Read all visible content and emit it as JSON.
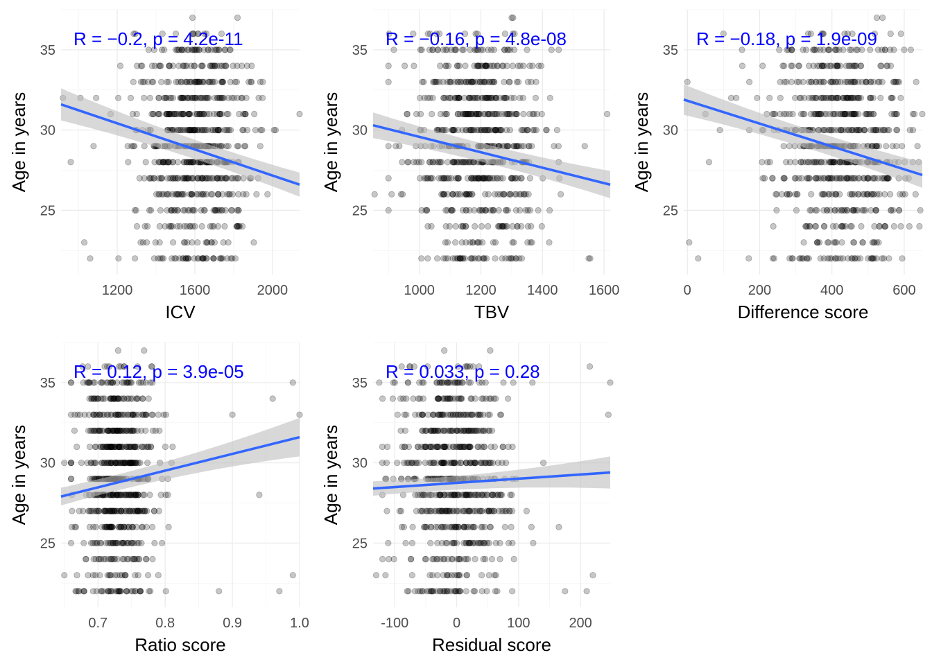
{
  "figure": {
    "background": "#ffffff"
  },
  "style": {
    "point_color": "#000000",
    "point_alpha": 0.22,
    "line_color": "#3366ff",
    "ribbon_color": "#bebebe",
    "annotation_color": "#0000ff",
    "axis_text_color": "#4d4d4d",
    "grid_color": "#ebebeb"
  },
  "chart_data": [
    {
      "type": "scatter",
      "xlabel": "ICV",
      "ylabel": "Age in years",
      "xlim": [
        910,
        2140
      ],
      "ylim": [
        21,
        37.5
      ],
      "xticks": [
        "1200",
        "1600",
        "2000"
      ],
      "xtick_values": [
        1200,
        1600,
        2000
      ],
      "yticks": [
        "25",
        "30",
        "35"
      ],
      "ytick_values": [
        25,
        30,
        35
      ],
      "stat": {
        "R": "R = −0.2",
        "p": "p = 4.2e-11"
      },
      "fit": {
        "x": [
          910,
          2140
        ],
        "y": [
          31.6,
          26.6
        ],
        "ci_start": 1.0,
        "ci_mid": 0.35,
        "ci_end": 0.75
      },
      "x_dist": {
        "center": 1600,
        "spread": 150,
        "min": 1050,
        "max": 2140
      },
      "y_values": [
        22,
        23,
        24,
        25,
        26,
        27,
        28,
        29,
        30,
        31,
        32,
        33,
        34,
        35,
        36,
        37
      ],
      "y_counts": [
        40,
        20,
        30,
        38,
        45,
        68,
        72,
        70,
        68,
        66,
        60,
        52,
        42,
        36,
        12,
        1
      ],
      "outliers": [
        [
          920,
          32
        ],
        [
          960,
          28
        ],
        [
          1010,
          32
        ],
        [
          1030,
          23
        ],
        [
          1060,
          22
        ],
        [
          2140,
          31
        ],
        [
          1820,
          37
        ]
      ]
    },
    {
      "type": "scatter",
      "xlabel": "TBV",
      "ylabel": "Age in years",
      "xlim": [
        850,
        1620
      ],
      "ylim": [
        21,
        37.5
      ],
      "xticks": [
        "1000",
        "1200",
        "1400",
        "1600"
      ],
      "xtick_values": [
        1000,
        1200,
        1400,
        1600
      ],
      "yticks": [
        "25",
        "30",
        "35"
      ],
      "ytick_values": [
        25,
        30,
        35
      ],
      "stat": {
        "R": "R = −0.16",
        "p": "p = 4.8e-08"
      },
      "fit": {
        "x": [
          850,
          1620
        ],
        "y": [
          30.3,
          26.6
        ],
        "ci_start": 0.8,
        "ci_mid": 0.33,
        "ci_end": 0.85
      },
      "x_dist": {
        "center": 1190,
        "spread": 110,
        "min": 900,
        "max": 1560
      },
      "y_values": [
        22,
        23,
        24,
        25,
        26,
        27,
        28,
        29,
        30,
        31,
        32,
        33,
        34,
        35,
        36,
        37
      ],
      "y_counts": [
        40,
        20,
        30,
        38,
        45,
        68,
        72,
        70,
        68,
        66,
        60,
        52,
        42,
        36,
        12,
        1
      ],
      "outliers": [
        [
          855,
          26
        ],
        [
          1610,
          31
        ],
        [
          1555,
          22
        ],
        [
          1300,
          37
        ]
      ]
    },
    {
      "type": "scatter",
      "xlabel": "Difference score",
      "ylabel": "Age in years",
      "xlim": [
        -10,
        650
      ],
      "ylim": [
        21,
        37.5
      ],
      "xticks": [
        "0",
        "200",
        "400",
        "600"
      ],
      "xtick_values": [
        0,
        200,
        400,
        600
      ],
      "yticks": [
        "25",
        "30",
        "35"
      ],
      "ytick_values": [
        25,
        30,
        35
      ],
      "stat": {
        "R": "R = −0.18",
        "p": "p = 1.9e-09"
      },
      "fit": {
        "x": [
          -10,
          650
        ],
        "y": [
          31.9,
          27.2
        ],
        "ci_start": 0.95,
        "ci_mid": 0.33,
        "ci_end": 0.8
      },
      "x_dist": {
        "center": 420,
        "spread": 95,
        "min": 100,
        "max": 650
      },
      "y_values": [
        22,
        23,
        24,
        25,
        26,
        27,
        28,
        29,
        30,
        31,
        32,
        33,
        34,
        35,
        36,
        37
      ],
      "y_counts": [
        40,
        20,
        30,
        38,
        45,
        68,
        72,
        70,
        68,
        66,
        60,
        52,
        42,
        36,
        12,
        1
      ],
      "outliers": [
        [
          0,
          33
        ],
        [
          5,
          23
        ],
        [
          30,
          22
        ],
        [
          50,
          31
        ],
        [
          60,
          28
        ],
        [
          90,
          30
        ],
        [
          170,
          22
        ],
        [
          640,
          28
        ],
        [
          600,
          35
        ],
        [
          540,
          37
        ]
      ]
    },
    {
      "type": "scatter",
      "xlabel": "Ratio score",
      "ylabel": "Age in years",
      "xlim": [
        0.645,
        1.0
      ],
      "ylim": [
        21,
        37.5
      ],
      "xticks": [
        "0.7",
        "0.8",
        "0.9",
        "1.0"
      ],
      "xtick_values": [
        0.7,
        0.8,
        0.9,
        1.0
      ],
      "yticks": [
        "25",
        "30",
        "35"
      ],
      "ytick_values": [
        25,
        30,
        35
      ],
      "stat": {
        "R": "R = 0.12",
        "p": "p = 3.9e-05"
      },
      "fit": {
        "x": [
          0.645,
          1.0
        ],
        "y": [
          27.9,
          31.6
        ],
        "ci_start": 0.55,
        "ci_mid": 0.3,
        "ci_end": 1.2
      },
      "x_dist": {
        "center": 0.728,
        "spread": 0.028,
        "min": 0.66,
        "max": 0.86
      },
      "y_values": [
        22,
        23,
        24,
        25,
        26,
        27,
        28,
        29,
        30,
        31,
        32,
        33,
        34,
        35,
        36,
        37
      ],
      "y_counts": [
        40,
        20,
        30,
        38,
        45,
        68,
        72,
        70,
        68,
        66,
        60,
        52,
        42,
        36,
        12,
        1
      ],
      "outliers": [
        [
          0.65,
          23
        ],
        [
          0.65,
          30
        ],
        [
          0.88,
          22
        ],
        [
          0.97,
          22
        ],
        [
          0.99,
          23
        ],
        [
          0.99,
          35
        ],
        [
          1.0,
          33
        ],
        [
          0.96,
          34
        ],
        [
          0.94,
          28
        ],
        [
          0.9,
          33
        ],
        [
          0.73,
          37
        ]
      ]
    },
    {
      "type": "scatter",
      "xlabel": "Residual score",
      "ylabel": "Age in years",
      "xlim": [
        -135,
        248
      ],
      "ylim": [
        21,
        37.5
      ],
      "xticks": [
        "-100",
        "0",
        "100",
        "200"
      ],
      "xtick_values": [
        -100,
        0,
        100,
        200
      ],
      "yticks": [
        "25",
        "30",
        "35"
      ],
      "ytick_values": [
        25,
        30,
        35
      ],
      "stat": {
        "R": "R = 0.033",
        "p": "p = 0.28"
      },
      "fit": {
        "x": [
          -135,
          248
        ],
        "y": [
          28.4,
          29.4
        ],
        "ci_start": 0.45,
        "ci_mid": 0.25,
        "ci_end": 1.0
      },
      "x_dist": {
        "center": -5,
        "spread": 45,
        "min": -120,
        "max": 220
      },
      "y_values": [
        22,
        23,
        24,
        25,
        26,
        27,
        28,
        29,
        30,
        31,
        32,
        33,
        34,
        35,
        36,
        37
      ],
      "y_counts": [
        40,
        20,
        30,
        38,
        45,
        68,
        72,
        70,
        68,
        66,
        60,
        52,
        42,
        36,
        12,
        1
      ],
      "outliers": [
        [
          -130,
          23
        ],
        [
          -125,
          35
        ],
        [
          -115,
          23
        ],
        [
          248,
          35
        ],
        [
          245,
          33
        ],
        [
          215,
          36
        ],
        [
          210,
          22
        ],
        [
          220,
          23
        ],
        [
          175,
          22
        ],
        [
          165,
          26
        ],
        [
          140,
          30
        ],
        [
          -20,
          37
        ]
      ]
    }
  ]
}
